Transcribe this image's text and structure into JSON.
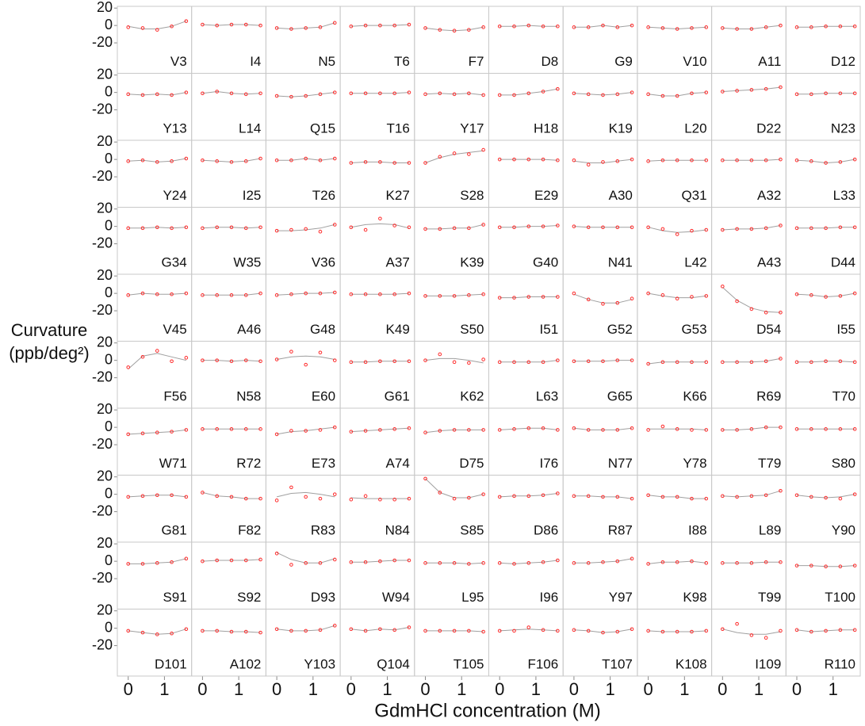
{
  "chart_data": {
    "type": "scatter",
    "xlabel": "GdmHCl concentration (M)",
    "ylabel": [
      "Curvature",
      "(ppb/deg²)"
    ],
    "x": [
      0,
      0.4,
      0.8,
      1.2,
      1.6
    ],
    "xlim": [
      -0.3,
      1.75
    ],
    "xticks": [
      0,
      1
    ],
    "ylim": [
      -55,
      22
    ],
    "yticks": [
      20,
      0,
      -20
    ],
    "point_color": "#ff2a2a",
    "fit_color": "#a0a0a0",
    "panels": [
      {
        "name": "V3",
        "values": [
          -2,
          -3,
          -5,
          -1,
          5
        ],
        "fit": [
          -1,
          -4,
          -4,
          -1,
          5
        ]
      },
      {
        "name": "I4",
        "values": [
          1,
          0,
          1,
          1,
          0
        ]
      },
      {
        "name": "N5",
        "values": [
          -3,
          -4,
          -3,
          -2,
          3
        ]
      },
      {
        "name": "T6",
        "values": [
          -1,
          0,
          0,
          0,
          1
        ]
      },
      {
        "name": "F7",
        "values": [
          -3,
          -5,
          -6,
          -5,
          -2
        ]
      },
      {
        "name": "D8",
        "values": [
          -1,
          -1,
          0,
          -1,
          -1
        ]
      },
      {
        "name": "G9",
        "values": [
          -2,
          -2,
          0,
          -2,
          0
        ]
      },
      {
        "name": "V10",
        "values": [
          -2,
          -3,
          -4,
          -3,
          -2
        ]
      },
      {
        "name": "A11",
        "values": [
          -3,
          -4,
          -4,
          -2,
          0
        ]
      },
      {
        "name": "D12",
        "values": [
          -2,
          -2,
          -1,
          -1,
          -1
        ]
      },
      {
        "name": "Y13",
        "values": [
          -2,
          -3,
          -2,
          -3,
          0
        ]
      },
      {
        "name": "L14",
        "values": [
          -1,
          1,
          -1,
          -2,
          -1
        ]
      },
      {
        "name": "Q15",
        "values": [
          -4,
          -5,
          -4,
          -2,
          0
        ]
      },
      {
        "name": "T16",
        "values": [
          -1,
          -1,
          -1,
          -1,
          0
        ]
      },
      {
        "name": "Y17",
        "values": [
          -2,
          -1,
          -2,
          -1,
          -3
        ]
      },
      {
        "name": "H18",
        "values": [
          -3,
          -3,
          -1,
          1,
          4
        ]
      },
      {
        "name": "K19",
        "values": [
          -1,
          -2,
          -3,
          -2,
          0
        ]
      },
      {
        "name": "L20",
        "values": [
          -2,
          -4,
          -4,
          -1,
          0
        ]
      },
      {
        "name": "D22",
        "values": [
          1,
          2,
          3,
          4,
          6
        ]
      },
      {
        "name": "N23",
        "values": [
          -2,
          -2,
          -1,
          -1,
          -1
        ]
      },
      {
        "name": "Y24",
        "values": [
          -2,
          -1,
          -3,
          -2,
          1
        ]
      },
      {
        "name": "I25",
        "values": [
          -1,
          -2,
          -3,
          -2,
          1
        ]
      },
      {
        "name": "T26",
        "values": [
          -1,
          -1,
          1,
          -1,
          1
        ]
      },
      {
        "name": "K27",
        "values": [
          -4,
          -3,
          -3,
          -4,
          -4
        ]
      },
      {
        "name": "S28",
        "values": [
          -4,
          3,
          7,
          6,
          11
        ],
        "fit": [
          -4,
          2,
          6,
          8,
          10
        ]
      },
      {
        "name": "E29",
        "values": [
          0,
          0,
          0,
          0,
          -1
        ]
      },
      {
        "name": "A30",
        "values": [
          -1,
          -6,
          -3,
          -2,
          0
        ],
        "fit": [
          -2,
          -4,
          -4,
          -2,
          0
        ]
      },
      {
        "name": "Q31",
        "values": [
          -2,
          -1,
          -1,
          -1,
          -1
        ]
      },
      {
        "name": "A32",
        "values": [
          -1,
          -1,
          -1,
          -1,
          0
        ]
      },
      {
        "name": "L33",
        "values": [
          -1,
          -2,
          -4,
          -3,
          0
        ]
      },
      {
        "name": "G34",
        "values": [
          -2,
          -2,
          -1,
          -2,
          -1
        ]
      },
      {
        "name": "W35",
        "values": [
          -2,
          -1,
          -1,
          -2,
          -1
        ]
      },
      {
        "name": "V36",
        "values": [
          -5,
          -4,
          -3,
          -6,
          2
        ],
        "fit": [
          -5,
          -5,
          -4,
          -2,
          2
        ]
      },
      {
        "name": "A37",
        "values": [
          -1,
          -4,
          9,
          1,
          -1
        ],
        "fit": [
          -1,
          2,
          3,
          2,
          -2
        ]
      },
      {
        "name": "K39",
        "values": [
          -3,
          -3,
          -2,
          -2,
          2
        ]
      },
      {
        "name": "G40",
        "values": [
          -1,
          -1,
          0,
          0,
          1
        ]
      },
      {
        "name": "N41",
        "values": [
          0,
          -1,
          -1,
          -1,
          -1
        ]
      },
      {
        "name": "L42",
        "values": [
          -1,
          -3,
          -9,
          -5,
          -4
        ],
        "fit": [
          -1,
          -5,
          -7,
          -6,
          -4
        ]
      },
      {
        "name": "A43",
        "values": [
          -4,
          -3,
          -3,
          -2,
          1
        ]
      },
      {
        "name": "D44",
        "values": [
          -2,
          -2,
          -2,
          -1,
          -1
        ]
      },
      {
        "name": "V45",
        "values": [
          -2,
          0,
          -1,
          -1,
          0
        ]
      },
      {
        "name": "A46",
        "values": [
          -2,
          -2,
          -2,
          -2,
          0
        ]
      },
      {
        "name": "G48",
        "values": [
          -2,
          -1,
          0,
          0,
          1
        ]
      },
      {
        "name": "K49",
        "values": [
          -1,
          -1,
          -1,
          -1,
          0
        ]
      },
      {
        "name": "S50",
        "values": [
          -3,
          -3,
          -3,
          -2,
          -1
        ]
      },
      {
        "name": "I51",
        "values": [
          -5,
          -5,
          -4,
          -4,
          -4
        ]
      },
      {
        "name": "G52",
        "values": [
          0,
          -7,
          -12,
          -11,
          -6
        ],
        "fit": [
          -1,
          -7,
          -11,
          -11,
          -7
        ]
      },
      {
        "name": "G53",
        "values": [
          0,
          -2,
          -6,
          -4,
          -3
        ],
        "fit": [
          0,
          -3,
          -5,
          -5,
          -3
        ]
      },
      {
        "name": "D54",
        "values": [
          8,
          -9,
          -18,
          -22,
          -22
        ],
        "fit": [
          7,
          -8,
          -17,
          -21,
          -22
        ]
      },
      {
        "name": "I55",
        "values": [
          -1,
          -2,
          -4,
          -3,
          0
        ]
      },
      {
        "name": "F56",
        "values": [
          -8,
          4,
          11,
          -1,
          3
        ],
        "fit": [
          -10,
          5,
          8,
          4,
          0
        ]
      },
      {
        "name": "N58",
        "values": [
          0,
          0,
          -1,
          0,
          -1
        ]
      },
      {
        "name": "E60",
        "values": [
          1,
          10,
          -5,
          9,
          0
        ],
        "fit": [
          1,
          4,
          5,
          4,
          1
        ]
      },
      {
        "name": "G61",
        "values": [
          -2,
          -2,
          -1,
          -1,
          -1
        ]
      },
      {
        "name": "K62",
        "values": [
          0,
          7,
          -2,
          -3,
          1
        ],
        "fit": [
          0,
          2,
          2,
          0,
          -3
        ]
      },
      {
        "name": "L63",
        "values": [
          -2,
          -2,
          -2,
          -2,
          0
        ]
      },
      {
        "name": "G65",
        "values": [
          -1,
          -1,
          -1,
          0,
          0
        ]
      },
      {
        "name": "K66",
        "values": [
          -4,
          -2,
          -2,
          -2,
          -2
        ]
      },
      {
        "name": "R69",
        "values": [
          -2,
          -2,
          -2,
          -1,
          2
        ]
      },
      {
        "name": "T70",
        "values": [
          -2,
          -2,
          -1,
          -1,
          -2
        ]
      },
      {
        "name": "W71",
        "values": [
          -8,
          -7,
          -6,
          -5,
          -3
        ]
      },
      {
        "name": "R72",
        "values": [
          -2,
          -2,
          -2,
          -2,
          -2
        ]
      },
      {
        "name": "E73",
        "values": [
          -8,
          -4,
          -4,
          -3,
          0
        ],
        "fit": [
          -8,
          -5,
          -4,
          -2,
          0
        ]
      },
      {
        "name": "A74",
        "values": [
          -5,
          -4,
          -3,
          -2,
          -1
        ]
      },
      {
        "name": "D75",
        "values": [
          -6,
          -4,
          -3,
          -3,
          -3
        ]
      },
      {
        "name": "I76",
        "values": [
          -3,
          -2,
          -1,
          -1,
          -3
        ]
      },
      {
        "name": "N77",
        "values": [
          -1,
          -3,
          -3,
          -3,
          -1
        ]
      },
      {
        "name": "Y78",
        "values": [
          -3,
          1,
          -2,
          -3,
          -3
        ],
        "fit": [
          -2,
          -2,
          -2,
          -2,
          -3
        ]
      },
      {
        "name": "T79",
        "values": [
          -3,
          -3,
          -2,
          0,
          0
        ]
      },
      {
        "name": "S80",
        "values": [
          -2,
          -2,
          -2,
          -2,
          -2
        ]
      },
      {
        "name": "G81",
        "values": [
          -3,
          -2,
          -1,
          -1,
          -3
        ]
      },
      {
        "name": "F82",
        "values": [
          2,
          -2,
          -3,
          -5,
          -5
        ]
      },
      {
        "name": "R83",
        "values": [
          -7,
          8,
          -3,
          -5,
          0
        ],
        "fit": [
          -3,
          1,
          2,
          0,
          -3
        ]
      },
      {
        "name": "N84",
        "values": [
          -6,
          -2,
          -6,
          -6,
          -5
        ],
        "fit": [
          -4,
          -5,
          -5,
          -5,
          -5
        ]
      },
      {
        "name": "S85",
        "values": [
          18,
          2,
          -5,
          -4,
          0
        ],
        "fit": [
          18,
          2,
          -4,
          -4,
          0
        ]
      },
      {
        "name": "D86",
        "values": [
          -3,
          -2,
          -2,
          -1,
          1
        ]
      },
      {
        "name": "R87",
        "values": [
          -2,
          -2,
          -3,
          -3,
          -5
        ]
      },
      {
        "name": "I88",
        "values": [
          -1,
          -3,
          -3,
          -5,
          -5
        ]
      },
      {
        "name": "L89",
        "values": [
          -2,
          -3,
          -2,
          -1,
          4
        ]
      },
      {
        "name": "Y90",
        "values": [
          -1,
          -3,
          -4,
          -5,
          0
        ],
        "fit": [
          -1,
          -3,
          -4,
          -3,
          0
        ]
      },
      {
        "name": "S91",
        "values": [
          -3,
          -3,
          -2,
          -1,
          3
        ]
      },
      {
        "name": "S92",
        "values": [
          0,
          1,
          1,
          1,
          2
        ]
      },
      {
        "name": "D93",
        "values": [
          9,
          -4,
          -2,
          -2,
          2
        ],
        "fit": [
          10,
          2,
          -2,
          -2,
          3
        ]
      },
      {
        "name": "W94",
        "values": [
          -1,
          -1,
          0,
          1,
          1
        ]
      },
      {
        "name": "L95",
        "values": [
          -2,
          -2,
          -2,
          -3,
          -2
        ]
      },
      {
        "name": "I96",
        "values": [
          -2,
          -3,
          -2,
          -1,
          1
        ]
      },
      {
        "name": "Y97",
        "values": [
          -2,
          -2,
          -1,
          0,
          3
        ]
      },
      {
        "name": "K98",
        "values": [
          -3,
          -1,
          -1,
          0,
          -2
        ]
      },
      {
        "name": "T99",
        "values": [
          -2,
          -2,
          -2,
          -1,
          -1
        ]
      },
      {
        "name": "T100",
        "values": [
          -5,
          -5,
          -6,
          -6,
          -5
        ]
      },
      {
        "name": "D101",
        "values": [
          -3,
          -5,
          -7,
          -6,
          -1
        ]
      },
      {
        "name": "A102",
        "values": [
          -3,
          -3,
          -4,
          -4,
          -5
        ]
      },
      {
        "name": "Y103",
        "values": [
          -1,
          -3,
          -3,
          -2,
          3
        ]
      },
      {
        "name": "Q104",
        "values": [
          -1,
          -3,
          -1,
          -2,
          1
        ]
      },
      {
        "name": "T105",
        "values": [
          -3,
          -3,
          -3,
          -3,
          -4
        ]
      },
      {
        "name": "F106",
        "values": [
          -3,
          -3,
          1,
          -2,
          -3
        ],
        "fit": [
          -3,
          -2,
          -1,
          -2,
          -3
        ]
      },
      {
        "name": "T107",
        "values": [
          -2,
          -3,
          -5,
          -4,
          -1
        ]
      },
      {
        "name": "K108",
        "values": [
          -3,
          -4,
          -4,
          -4,
          -3
        ]
      },
      {
        "name": "I109",
        "values": [
          -1,
          5,
          -8,
          -11,
          -3
        ],
        "fit": [
          -1,
          -5,
          -7,
          -7,
          -4
        ]
      },
      {
        "name": "R110",
        "values": [
          -2,
          -4,
          -3,
          -2,
          -2
        ]
      }
    ]
  }
}
